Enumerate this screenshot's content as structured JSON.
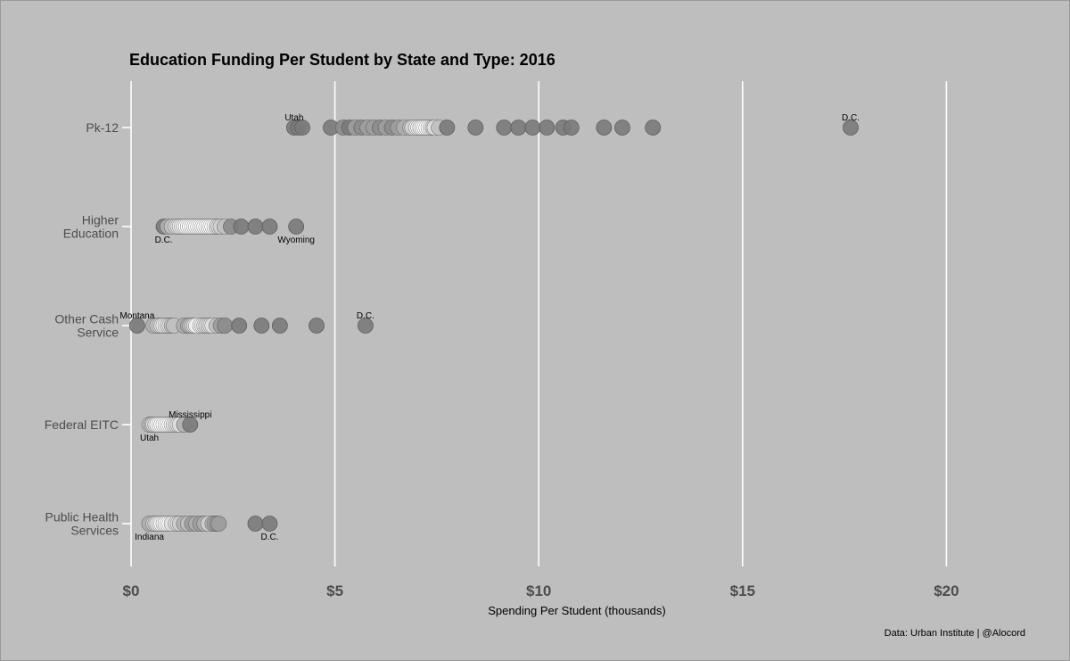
{
  "chart_data": {
    "type": "scatter",
    "title": "Education Funding Per Student by State and Type: 2016",
    "xlabel": "Spending Per Student (thousands)",
    "ylabel": "",
    "caption": "Data: Urban Institute | @Alocord",
    "xlim": [
      0,
      22.5
    ],
    "x_ticks": [
      0,
      5,
      10,
      15,
      20
    ],
    "x_tick_labels": [
      "$0",
      "$5",
      "$10",
      "$15",
      "$20"
    ],
    "grid": "vertical major gridlines only",
    "legend": "none",
    "categories": [
      [
        "Pk-12"
      ],
      [
        "Higher",
        "Education"
      ],
      [
        "Other Cash",
        "Service"
      ],
      [
        "Federal EITC"
      ],
      [
        "Public Health",
        "Services"
      ]
    ],
    "colors": {
      "panel": "#bebebe",
      "grid": "#ffffff",
      "point_dark": "#7a7a7a",
      "point_light": "#ffffff",
      "point_stroke": "#5e5e5e"
    },
    "series": [
      {
        "values": [
          4.0,
          4.1,
          4.2,
          4.9,
          5.2,
          5.35,
          5.5,
          5.65,
          5.8,
          5.95,
          6.1,
          6.25,
          6.4,
          6.55,
          6.7,
          6.85,
          6.9,
          7.0,
          7.05,
          7.1,
          7.15,
          7.2,
          7.25,
          7.3,
          7.35,
          7.4,
          7.45,
          7.55,
          7.75,
          8.45,
          9.15,
          9.5,
          9.85,
          10.2,
          10.6,
          10.8,
          11.6,
          12.05,
          12.8,
          17.65
        ]
      },
      {
        "values": [
          0.8,
          0.9,
          1.0,
          1.1,
          1.15,
          1.2,
          1.25,
          1.3,
          1.35,
          1.4,
          1.45,
          1.5,
          1.55,
          1.6,
          1.65,
          1.7,
          1.75,
          1.8,
          1.85,
          1.9,
          1.95,
          2.0,
          2.05,
          2.1,
          2.15,
          2.2,
          2.3,
          2.45,
          2.7,
          3.05,
          3.4,
          4.05
        ]
      },
      {
        "values": [
          0.15,
          0.55,
          0.65,
          0.7,
          0.75,
          0.8,
          0.85,
          0.9,
          0.95,
          1.0,
          1.05,
          1.3,
          1.4,
          1.45,
          1.5,
          1.55,
          1.6,
          1.7,
          1.75,
          1.8,
          1.85,
          1.9,
          1.95,
          2.0,
          2.1,
          2.2,
          2.3,
          2.65,
          3.2,
          3.65,
          4.55,
          5.75
        ]
      },
      {
        "values": [
          0.45,
          0.5,
          0.55,
          0.6,
          0.65,
          0.7,
          0.75,
          0.8,
          0.85,
          0.9,
          0.95,
          1.0,
          1.05,
          1.1,
          1.15,
          1.2,
          1.3,
          1.45
        ]
      },
      {
        "values": [
          0.45,
          0.55,
          0.6,
          0.65,
          0.7,
          0.75,
          0.8,
          0.85,
          0.9,
          0.95,
          1.0,
          1.1,
          1.15,
          1.2,
          1.3,
          1.4,
          1.5,
          1.6,
          1.7,
          1.8,
          1.9,
          2.0,
          2.05,
          2.1,
          2.15,
          3.05,
          3.4
        ]
      }
    ],
    "annotations": [
      {
        "category": 0,
        "x": 4.0,
        "label": "Utah",
        "side": "above"
      },
      {
        "category": 0,
        "x": 17.65,
        "label": "D.C.",
        "side": "above"
      },
      {
        "category": 1,
        "x": 0.8,
        "label": "D.C.",
        "side": "below"
      },
      {
        "category": 1,
        "x": 4.05,
        "label": "Wyoming",
        "side": "below"
      },
      {
        "category": 2,
        "x": 0.15,
        "label": "Montana",
        "side": "above"
      },
      {
        "category": 2,
        "x": 5.75,
        "label": "D.C.",
        "side": "above"
      },
      {
        "category": 3,
        "x": 1.45,
        "label": "Mississippi",
        "side": "above"
      },
      {
        "category": 3,
        "x": 0.45,
        "label": "Utah",
        "side": "below"
      },
      {
        "category": 4,
        "x": 0.45,
        "label": "Indiana",
        "side": "below"
      },
      {
        "category": 4,
        "x": 3.4,
        "label": "D.C.",
        "side": "below"
      }
    ]
  }
}
